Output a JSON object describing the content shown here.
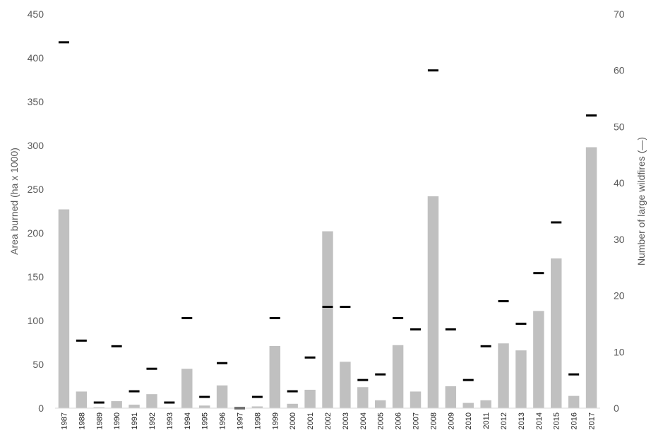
{
  "chart_data": {
    "type": "bar",
    "categories": [
      "1987",
      "1988",
      "1989",
      "1990",
      "1991",
      "1992",
      "1993",
      "1994",
      "1995",
      "1996",
      "1997",
      "1998",
      "1999",
      "2000",
      "2001",
      "2002",
      "2003",
      "2004",
      "2005",
      "2006",
      "2007",
      "2008",
      "2009",
      "2010",
      "2011",
      "2012",
      "2013",
      "2014",
      "2015",
      "2016",
      "2017"
    ],
    "series": [
      {
        "type": "bar",
        "axis": "left",
        "color": "#c0c0c0",
        "values": [
          227,
          19,
          1,
          8,
          4,
          16,
          0,
          45,
          3,
          26,
          0,
          2,
          71,
          5,
          21,
          202,
          53,
          24,
          9,
          72,
          19,
          242,
          25,
          6,
          9,
          74,
          66,
          111,
          171,
          14,
          298
        ]
      },
      {
        "type": "dash",
        "axis": "right",
        "color": "#000000",
        "values": [
          65,
          12,
          1,
          11,
          3,
          7,
          1,
          16,
          2,
          8,
          0,
          2,
          16,
          3,
          9,
          18,
          18,
          5,
          6,
          16,
          14,
          60,
          14,
          5,
          11,
          19,
          15,
          24,
          33,
          6,
          52
        ]
      }
    ],
    "ylabel": "Area burned (ha x 1000)",
    "y2label": "Number of large wildfires (—)",
    "ylim": [
      0,
      450
    ],
    "y2lim": [
      0,
      70
    ],
    "yticks": [
      "0",
      "50",
      "100",
      "150",
      "200",
      "250",
      "300",
      "350",
      "400",
      "450"
    ],
    "y2ticks": [
      "0",
      "10",
      "20",
      "30",
      "40",
      "50",
      "60",
      "70"
    ],
    "grid": false,
    "legend": "none"
  }
}
